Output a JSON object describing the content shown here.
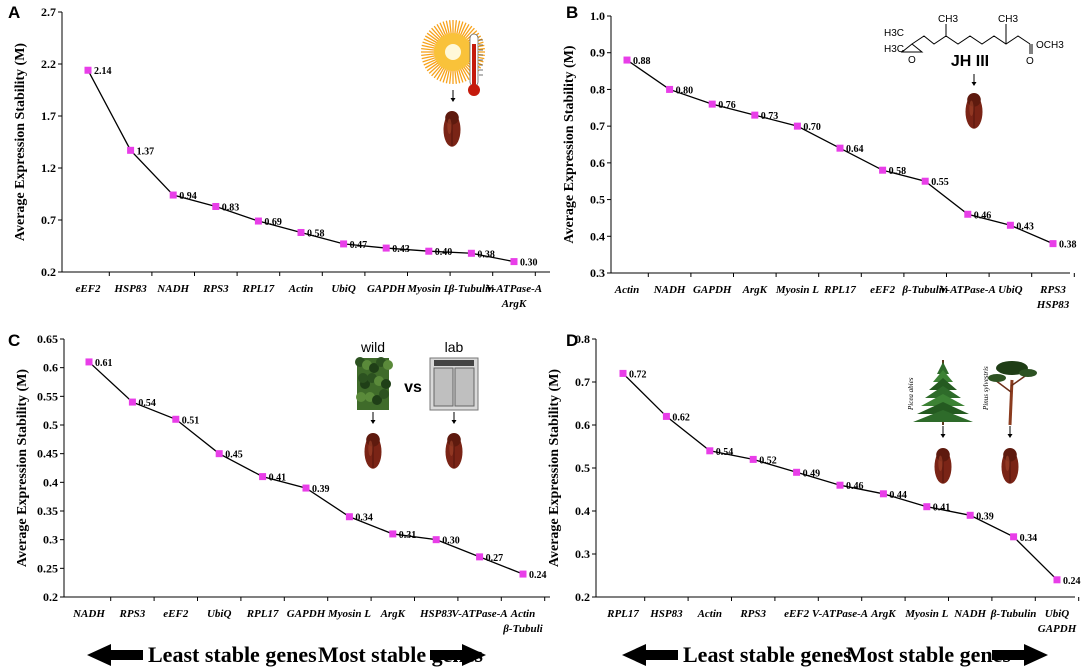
{
  "chart_data": [
    {
      "panel": "A",
      "type": "line",
      "ylabel": "Average Expression Stability (M)",
      "ylim": [
        0.2,
        2.7
      ],
      "yticks": [
        "0.2",
        "0.7",
        "1.2",
        "1.7",
        "2.2",
        "2.7"
      ],
      "categories": [
        "eEF2",
        "HSP83",
        "NADH",
        "RPS3",
        "RPL17",
        "Actin",
        "UbiQ",
        "GAPDH",
        "Myosin L",
        "β-Tubulin",
        "V-ATPase-A|ArgK"
      ],
      "values": [
        2.14,
        1.37,
        0.94,
        0.83,
        0.69,
        0.58,
        0.47,
        0.43,
        0.4,
        0.38,
        0.3
      ],
      "labels": [
        "2.14",
        "1.37",
        "0.94",
        "0.83",
        "0.69",
        "0.58",
        "0.47",
        "0.43",
        "0.40",
        "0.38",
        "0.30"
      ],
      "illustration": "sun-thermometer-beetle"
    },
    {
      "panel": "B",
      "type": "line",
      "ylabel": "Average Expression Stability (M)",
      "ylim": [
        0.3,
        1.0
      ],
      "yticks": [
        "0.3",
        "0.4",
        "0.5",
        "0.6",
        "0.7",
        "0.8",
        "0.9",
        "1.0"
      ],
      "categories": [
        "Actin",
        "NADH",
        "GAPDH",
        "ArgK",
        "Myosin L",
        "RPL17",
        "eEF2",
        "β-Tubulin",
        "V-ATPase-A",
        "UbiQ",
        "RPS3|HSP83"
      ],
      "values": [
        0.88,
        0.8,
        0.76,
        0.73,
        0.7,
        0.64,
        0.58,
        0.55,
        0.46,
        0.43,
        0.38
      ],
      "labels": [
        "0.88",
        "0.80",
        "0.76",
        "0.73",
        "0.70",
        "0.64",
        "0.58",
        "0.55",
        "0.46",
        "0.43",
        "0.38"
      ],
      "illustration": "jh3-molecule-beetle",
      "annotation": "JH III",
      "molecule_labels": [
        "H3C",
        "H3C",
        "CH3",
        "CH3",
        "OCH3",
        "O",
        "O"
      ]
    },
    {
      "panel": "C",
      "type": "line",
      "ylabel": "Average Expression Stability (M)",
      "ylim": [
        0.2,
        0.65
      ],
      "yticks": [
        "0.2",
        "0.25",
        "0.3",
        "0.35",
        "0.4",
        "0.45",
        "0.5",
        "0.55",
        "0.6",
        "0.65"
      ],
      "categories": [
        "NADH",
        "RPS3",
        "eEF2",
        "UbiQ",
        "RPL17",
        "GAPDH",
        "Myosin L",
        "ArgK",
        "HSP83",
        "V-ATPase-A",
        "Actin|β-Tubuli"
      ],
      "values": [
        0.61,
        0.54,
        0.51,
        0.45,
        0.41,
        0.39,
        0.34,
        0.31,
        0.3,
        0.27,
        0.24
      ],
      "labels": [
        "0.61",
        "0.54",
        "0.51",
        "0.45",
        "0.41",
        "0.39",
        "0.34",
        "0.31",
        "0.30",
        "0.27",
        "0.24"
      ],
      "illustration": "wild-vs-lab-beetles",
      "inset_labels": [
        "wild",
        "vs",
        "lab"
      ]
    },
    {
      "panel": "D",
      "type": "line",
      "ylabel": "Average Expression Stability (M)",
      "ylim": [
        0.2,
        0.8
      ],
      "yticks": [
        "0.2",
        "0.3",
        "0.4",
        "0.5",
        "0.6",
        "0.7",
        "0.8"
      ],
      "categories": [
        "RPL17",
        "HSP83",
        "Actin",
        "RPS3",
        "eEF2",
        "V-ATPase-A",
        "ArgK",
        "Myosin L",
        "NADH",
        "β-Tubulin",
        "UbiQ|GAPDH"
      ],
      "values": [
        0.72,
        0.62,
        0.54,
        0.52,
        0.49,
        0.46,
        0.44,
        0.41,
        0.39,
        0.34,
        0.24
      ],
      "labels": [
        "0.72",
        "0.62",
        "0.54",
        "0.52",
        "0.49",
        "0.46",
        "0.44",
        "0.41",
        "0.39",
        "0.34",
        "0.24"
      ],
      "illustration": "spruce-pine-beetles",
      "tree_labels": [
        "Picea abies",
        "Pinus sylvestris"
      ]
    }
  ],
  "footer": {
    "left_label": "Least stable genes",
    "right_label": "Most stable genes"
  },
  "colors": {
    "marker": "#e83ee8",
    "line": "#000000",
    "beetle": "#7a2416",
    "sun": "#f7a21b",
    "thermo": "#c51a0c"
  }
}
